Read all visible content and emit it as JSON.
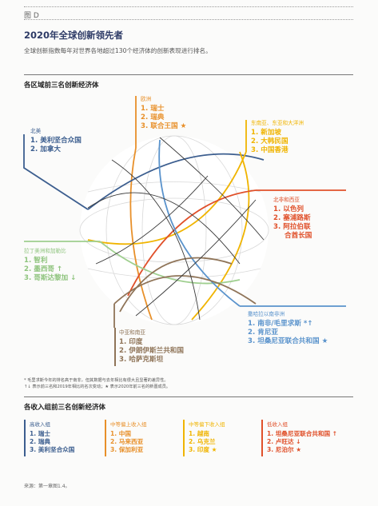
{
  "figure_label": "图 D",
  "title": "2020年全球创新领先者",
  "subtitle": "全球创新指数每年对世界各地超过130个经济体的创新表现进行排名。",
  "regions_heading": "各区域前三名创新经济体",
  "regions": {
    "europe": {
      "name": "欧洲",
      "color": "#e8902a",
      "items": [
        "1. 瑞士",
        "2. 瑞典",
        "3. 联合王国 ★"
      ]
    },
    "north_america": {
      "name": "北美",
      "color": "#3c5e8f",
      "items": [
        "1. 美利坚合众国",
        "2. 加拿大"
      ]
    },
    "east_asia": {
      "name": "东南亚、东亚和大洋洲",
      "color": "#f0b400",
      "items": [
        "1. 新加坡",
        "2. 大韩民国",
        "3. 中国香港"
      ]
    },
    "north_africa_west_asia": {
      "name": "北非和西亚",
      "color": "#e0502a",
      "items": [
        "1. 以色列",
        "2. 塞浦路斯",
        "3. 阿拉伯联",
        "合酋长国"
      ]
    },
    "latin_america": {
      "name": "拉丁美洲和加勒比",
      "color": "#9fcf8f",
      "items": [
        "1. 智利",
        "2. 墨西哥 ↑",
        "3. 哥斯达黎加 ↓"
      ]
    },
    "sub_saharan_africa": {
      "name": "撒哈拉以南非洲",
      "color": "#5a93cc",
      "items": [
        "1. 南非/毛里求斯 *↑",
        "2. 肯尼亚",
        "3. 坦桑尼亚联合共和国 ★"
      ]
    },
    "central_south_asia": {
      "name": "中亚和南亚",
      "color": "#8f7458",
      "items": [
        "1. 印度",
        "2. 伊朗伊斯兰共和国",
        "3. 哈萨克斯坦"
      ]
    }
  },
  "notes": {
    "line1": "* 毛里求斯今年的排名高于南非，但其数据与去年相比有很大且显著的差异性。",
    "line2": "↑↓ 表示前三名和2019年相比的名次变动；★ 表示2020年前三名的新晋成员。"
  },
  "income_heading": "各收入组前三名创新经济体",
  "income_groups": [
    {
      "name": "高收入组",
      "color": "#3c5e8f",
      "items": [
        "1. 瑞士",
        "2. 瑞典",
        "3. 美利坚合众国"
      ]
    },
    {
      "name": "中等偏上收入组",
      "color": "#e8902a",
      "items": [
        "1. 中国",
        "2. 马来西亚",
        "3. 保加利亚"
      ]
    },
    {
      "name": "中等偏下收入组",
      "color": "#f0b400",
      "items": [
        "1. 越南",
        "2. 乌克兰",
        "3. 印度 ★"
      ]
    },
    {
      "name": "低收入组",
      "color": "#e0502a",
      "items": [
        "1. 坦桑尼亚联合共和国 ↑",
        "2. 卢旺达 ↓",
        "3. 尼泊尔 ★"
      ]
    }
  ],
  "source": "来源：第一章图1.4。"
}
